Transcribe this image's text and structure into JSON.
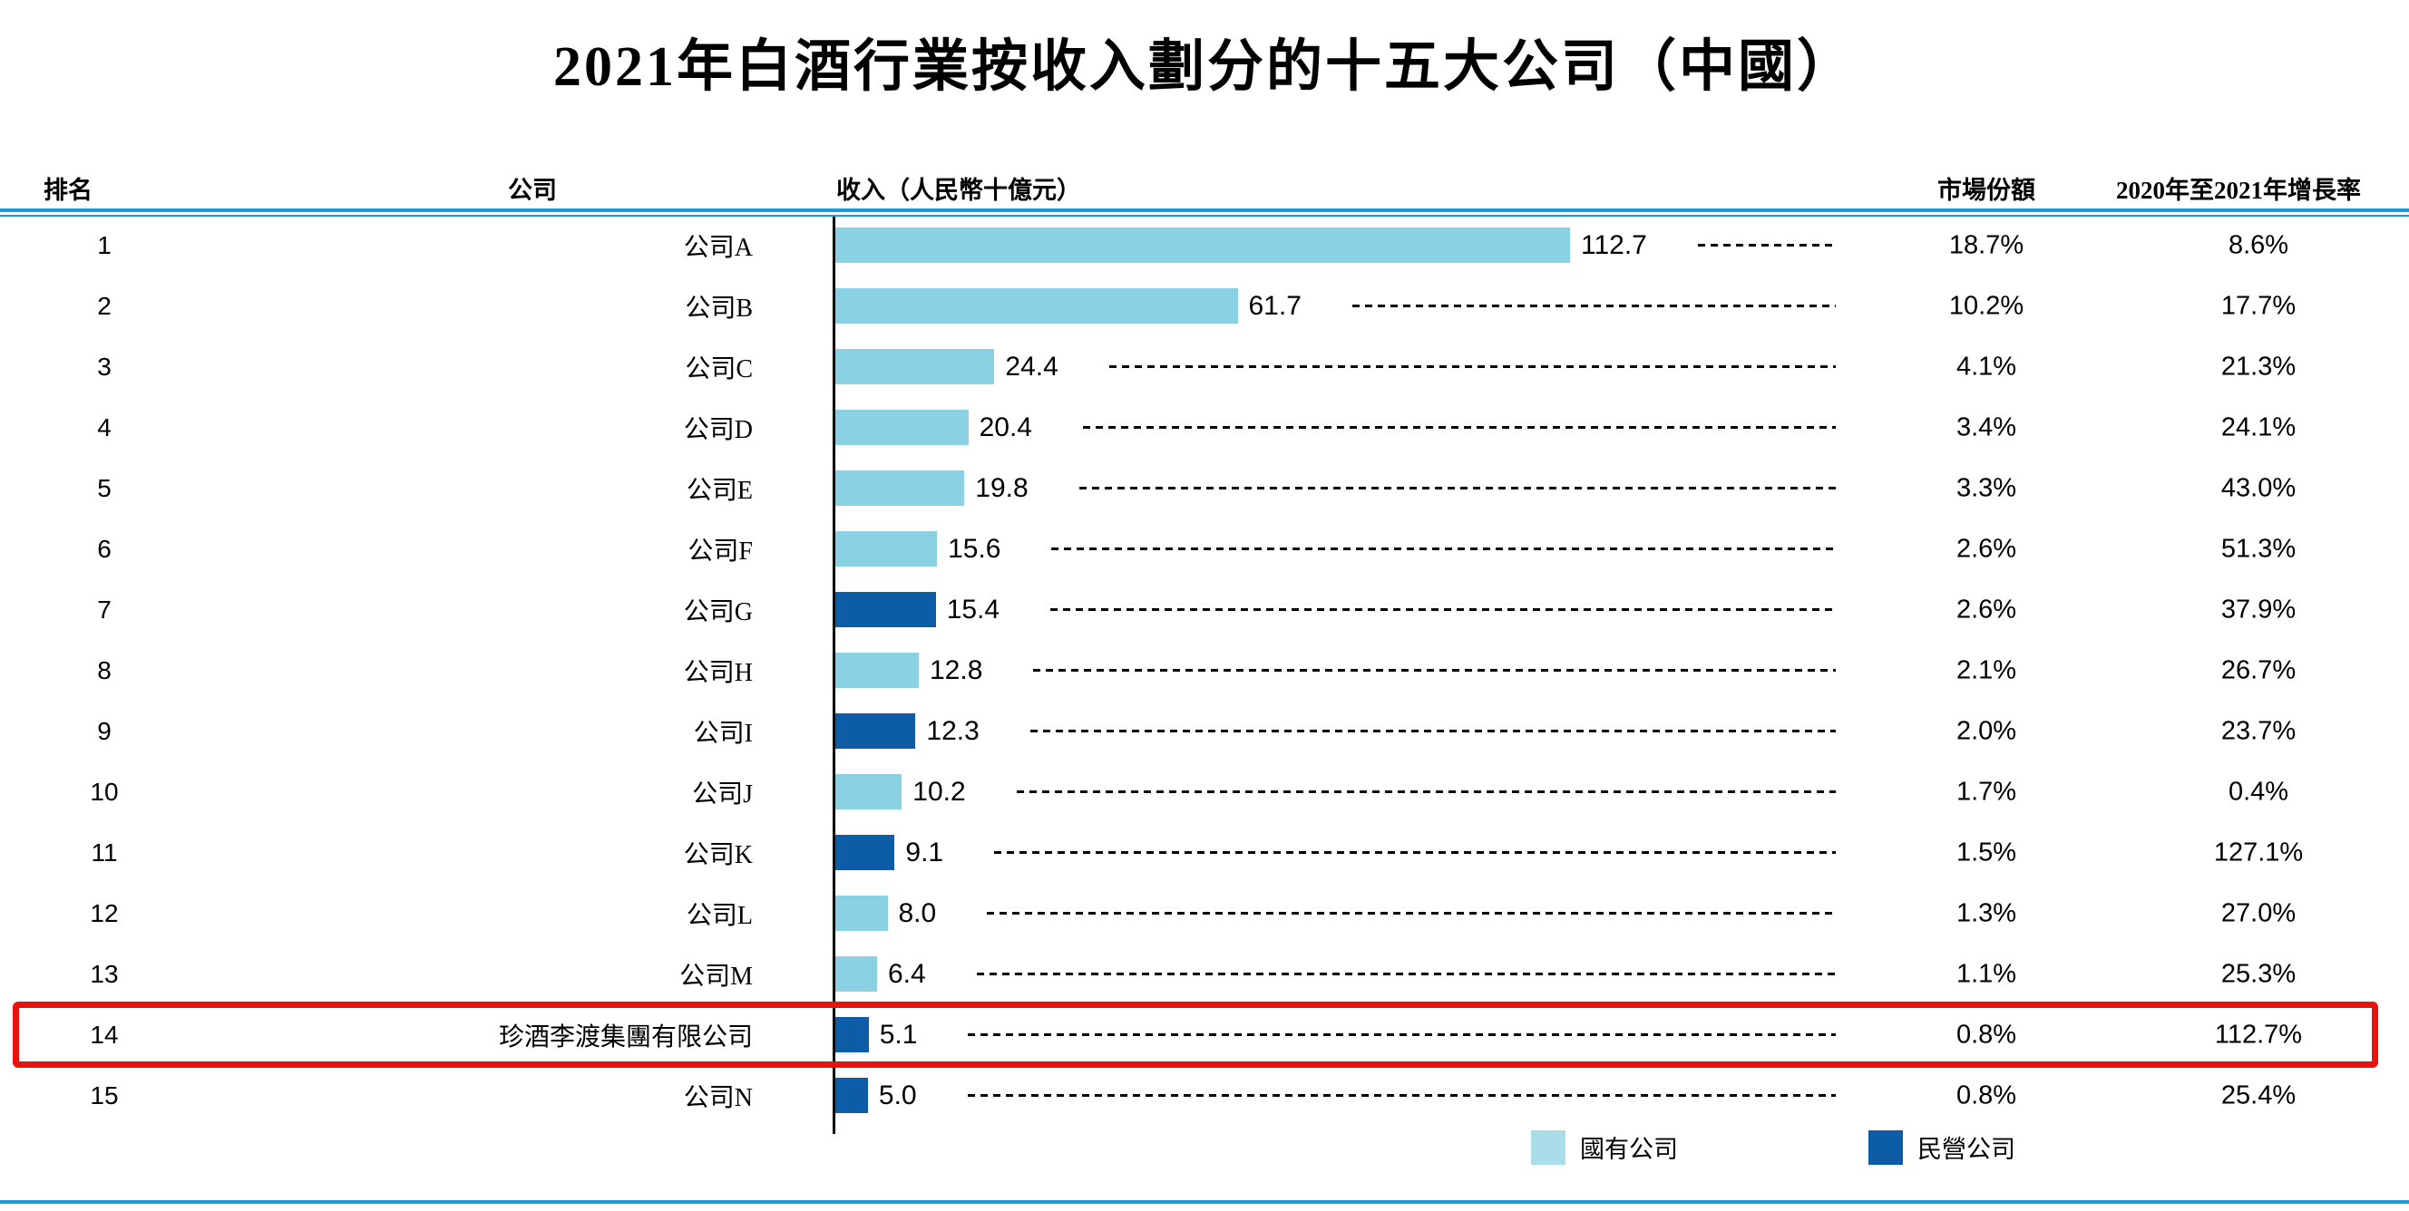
{
  "title": "2021年白酒行業按收入劃分的十五大公司（中國）",
  "header": {
    "rank": "排名",
    "company": "公司",
    "revenue": "收入（人民幣十億元）",
    "market_share": "市場份額",
    "growth": "2020年至2021年增長率"
  },
  "legend": [
    {
      "key": "state",
      "label": "國有公司",
      "color": "#A9DDE9"
    },
    {
      "key": "private",
      "label": "民營公司",
      "color": "#0C5CA8"
    }
  ],
  "colors": {
    "state_bar": "#8BD1E4",
    "private_bar": "#0C5CA8",
    "rule_blue": "#1E9BD7",
    "highlight_red": "#E9130B",
    "text": "#000000"
  },
  "chart_data": {
    "type": "bar",
    "orientation": "horizontal",
    "title": "2021年白酒行業按收入劃分的十五大公司（中國）",
    "xlabel": "收入（人民幣十億元）",
    "xlim": [
      0,
      112.7
    ],
    "grid": false,
    "legend_position": "bottom-right",
    "rows": [
      {
        "rank": "1",
        "company": "公司A",
        "revenue": 112.7,
        "revenue_label": "112.7",
        "market_share": "18.7%",
        "growth": "8.6%",
        "ownership": "state",
        "highlighted": false
      },
      {
        "rank": "2",
        "company": "公司B",
        "revenue": 61.7,
        "revenue_label": "61.7",
        "market_share": "10.2%",
        "growth": "17.7%",
        "ownership": "state",
        "highlighted": false
      },
      {
        "rank": "3",
        "company": "公司C",
        "revenue": 24.4,
        "revenue_label": "24.4",
        "market_share": "4.1%",
        "growth": "21.3%",
        "ownership": "state",
        "highlighted": false
      },
      {
        "rank": "4",
        "company": "公司D",
        "revenue": 20.4,
        "revenue_label": "20.4",
        "market_share": "3.4%",
        "growth": "24.1%",
        "ownership": "state",
        "highlighted": false
      },
      {
        "rank": "5",
        "company": "公司E",
        "revenue": 19.8,
        "revenue_label": "19.8",
        "market_share": "3.3%",
        "growth": "43.0%",
        "ownership": "state",
        "highlighted": false
      },
      {
        "rank": "6",
        "company": "公司F",
        "revenue": 15.6,
        "revenue_label": "15.6",
        "market_share": "2.6%",
        "growth": "51.3%",
        "ownership": "state",
        "highlighted": false
      },
      {
        "rank": "7",
        "company": "公司G",
        "revenue": 15.4,
        "revenue_label": "15.4",
        "market_share": "2.6%",
        "growth": "37.9%",
        "ownership": "private",
        "highlighted": false
      },
      {
        "rank": "8",
        "company": "公司H",
        "revenue": 12.8,
        "revenue_label": "12.8",
        "market_share": "2.1%",
        "growth": "26.7%",
        "ownership": "state",
        "highlighted": false
      },
      {
        "rank": "9",
        "company": "公司I",
        "revenue": 12.3,
        "revenue_label": "12.3",
        "market_share": "2.0%",
        "growth": "23.7%",
        "ownership": "private",
        "highlighted": false
      },
      {
        "rank": "10",
        "company": "公司J",
        "revenue": 10.2,
        "revenue_label": "10.2",
        "market_share": "1.7%",
        "growth": "0.4%",
        "ownership": "state",
        "highlighted": false
      },
      {
        "rank": "11",
        "company": "公司K",
        "revenue": 9.1,
        "revenue_label": "9.1",
        "market_share": "1.5%",
        "growth": "127.1%",
        "ownership": "private",
        "highlighted": false
      },
      {
        "rank": "12",
        "company": "公司L",
        "revenue": 8.0,
        "revenue_label": "8.0",
        "market_share": "1.3%",
        "growth": "27.0%",
        "ownership": "state",
        "highlighted": false
      },
      {
        "rank": "13",
        "company": "公司M",
        "revenue": 6.4,
        "revenue_label": "6.4",
        "market_share": "1.1%",
        "growth": "25.3%",
        "ownership": "state",
        "highlighted": false
      },
      {
        "rank": "14",
        "company": "珍酒李渡集團有限公司",
        "revenue": 5.1,
        "revenue_label": "5.1",
        "market_share": "0.8%",
        "growth": "112.7%",
        "ownership": "private",
        "highlighted": true
      },
      {
        "rank": "15",
        "company": "公司N",
        "revenue": 5.0,
        "revenue_label": "5.0",
        "market_share": "0.8%",
        "growth": "25.4%",
        "ownership": "private",
        "highlighted": false
      }
    ]
  }
}
